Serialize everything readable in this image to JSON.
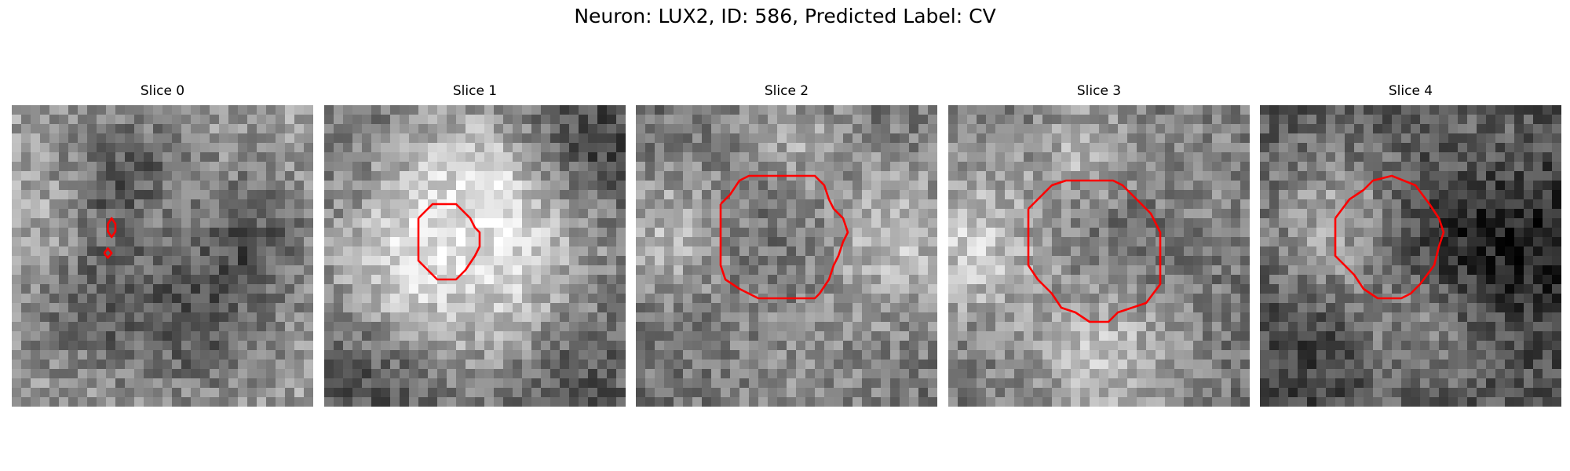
{
  "title": "Neuron: LUX2, ID: 586, Predicted Label: CV",
  "panels": [
    {
      "title": "Slice 0",
      "seed": 11,
      "tone": "mixed"
    },
    {
      "title": "Slice 1",
      "seed": 29,
      "tone": "bright"
    },
    {
      "title": "Slice 2",
      "seed": 47,
      "tone": "mid"
    },
    {
      "title": "Slice 3",
      "seed": 83,
      "tone": "mid"
    },
    {
      "title": "Slice 4",
      "seed": 97,
      "tone": "dark"
    }
  ],
  "contour_color": "#ff0000"
}
